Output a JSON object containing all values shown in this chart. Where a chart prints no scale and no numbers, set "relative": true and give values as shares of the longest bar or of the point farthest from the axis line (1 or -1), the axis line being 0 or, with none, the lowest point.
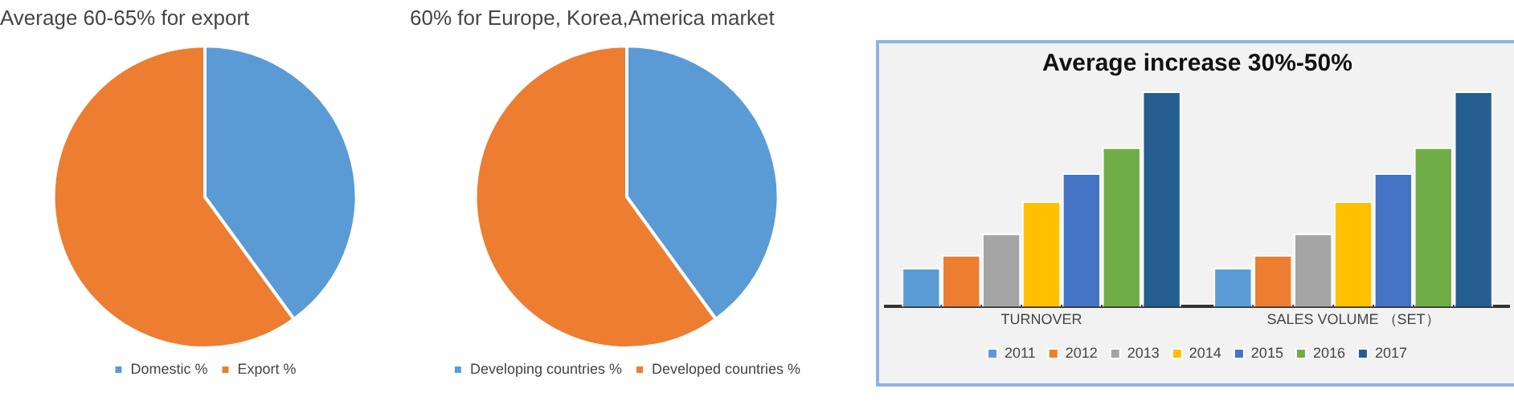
{
  "chart_data": [
    {
      "type": "pie",
      "title": "Average 60-65% for export",
      "categories": [
        "Domestic %",
        "Export %"
      ],
      "values": [
        40,
        60
      ],
      "colors": [
        "#5b9bd5",
        "#ed7d31"
      ],
      "legend": "bottom"
    },
    {
      "type": "pie",
      "title": "60% for Europe, Korea,America market",
      "categories": [
        "Developing countries %",
        "Developed countries %"
      ],
      "values": [
        40,
        60
      ],
      "colors": [
        "#5b9bd5",
        "#ed7d31"
      ],
      "legend": "bottom"
    },
    {
      "type": "bar",
      "title": "Average increase 30%-50%",
      "relative": true,
      "categories": [
        "TURNOVER",
        "SALES VOLUME （SET）"
      ],
      "legend": "bottom",
      "series": [
        {
          "name": "2011",
          "color": "#5b9bd5",
          "values": [
            0.18,
            0.18
          ]
        },
        {
          "name": "2012",
          "color": "#ed7d31",
          "values": [
            0.24,
            0.24
          ]
        },
        {
          "name": "2013",
          "color": "#a5a5a5",
          "values": [
            0.34,
            0.34
          ]
        },
        {
          "name": "2014",
          "color": "#ffc000",
          "values": [
            0.49,
            0.49
          ]
        },
        {
          "name": "2015",
          "color": "#4472c4",
          "values": [
            0.62,
            0.62
          ]
        },
        {
          "name": "2016",
          "color": "#70ad47",
          "values": [
            0.74,
            0.74
          ]
        },
        {
          "name": "2017",
          "color": "#255e91",
          "values": [
            1,
            1
          ]
        }
      ]
    }
  ]
}
